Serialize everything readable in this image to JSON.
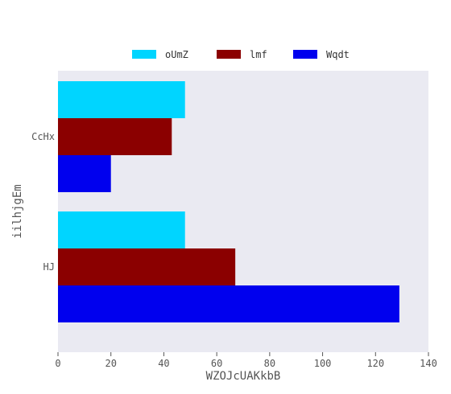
{
  "chart_data": {
    "type": "bar",
    "orientation": "horizontal",
    "categories": [
      "CcHx",
      "HJ"
    ],
    "series": [
      {
        "name": "oUmZ",
        "values": [
          48,
          48
        ],
        "color": "#00d5ff"
      },
      {
        "name": "lmf",
        "values": [
          43,
          67
        ],
        "color": "#8b0000"
      },
      {
        "name": "Wqdt",
        "values": [
          20,
          129
        ],
        "color": "#0000ee"
      }
    ],
    "xlabel": "WZOJcUAKkbB",
    "ylabel": "iilhjgEm",
    "xlim": [
      0,
      140
    ],
    "xticks": [
      0,
      20,
      40,
      60,
      80,
      100,
      120,
      140
    ],
    "grid": false,
    "legend_position": "top",
    "background": "#eaeaf2"
  }
}
